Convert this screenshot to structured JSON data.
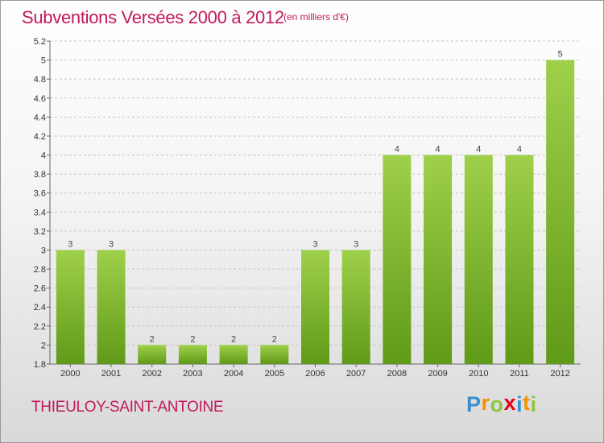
{
  "header": {
    "title": "Subventions Versées 2000 à 2012",
    "subtitle": "(en milliers d'€)"
  },
  "footer": {
    "commune": "THIEULOY-SAINT-ANTOINE",
    "logo_letters": [
      "P",
      "r",
      "o",
      "x",
      "i",
      "t",
      "i"
    ],
    "logo_colors": [
      "#3a8fd1",
      "#f39200",
      "#8dc63f",
      "#e2001a",
      "#3a8fd1",
      "#f39200",
      "#8dc63f"
    ]
  },
  "chart_data": {
    "type": "bar",
    "title": "Subventions Versées 2000 à 2012",
    "subtitle": "(en milliers d'€)",
    "categories": [
      "2000",
      "2001",
      "2002",
      "2003",
      "2004",
      "2005",
      "2006",
      "2007",
      "2008",
      "2009",
      "2010",
      "2011",
      "2012"
    ],
    "values": [
      3,
      3,
      2,
      2,
      2,
      2,
      3,
      3,
      4,
      4,
      4,
      4,
      5
    ],
    "value_labels": [
      "3",
      "3",
      "2",
      "2",
      "2",
      "2",
      "3",
      "3",
      "4",
      "4",
      "4",
      "4",
      "5"
    ],
    "ylim": [
      1.8,
      5.2
    ],
    "yticks": [
      1.8,
      2,
      2.2,
      2.4,
      2.6,
      2.8,
      3,
      3.2,
      3.4,
      3.6,
      3.8,
      4,
      4.2,
      4.4,
      4.6,
      4.8,
      5,
      5.2
    ],
    "ytick_labels": [
      "1.8",
      "2",
      "2.2",
      "2.4",
      "2.6",
      "2.8",
      "3",
      "3.2",
      "3.4",
      "3.6",
      "3.8",
      "4",
      "4.2",
      "4.4",
      "4.6",
      "4.8",
      "5",
      "5.2"
    ],
    "grid": "horizontal-dashed",
    "bar_color": "#7ab828",
    "bar_color_light": "#9fd04a",
    "bar_color_dark": "#5f9a18",
    "legend": "none"
  }
}
